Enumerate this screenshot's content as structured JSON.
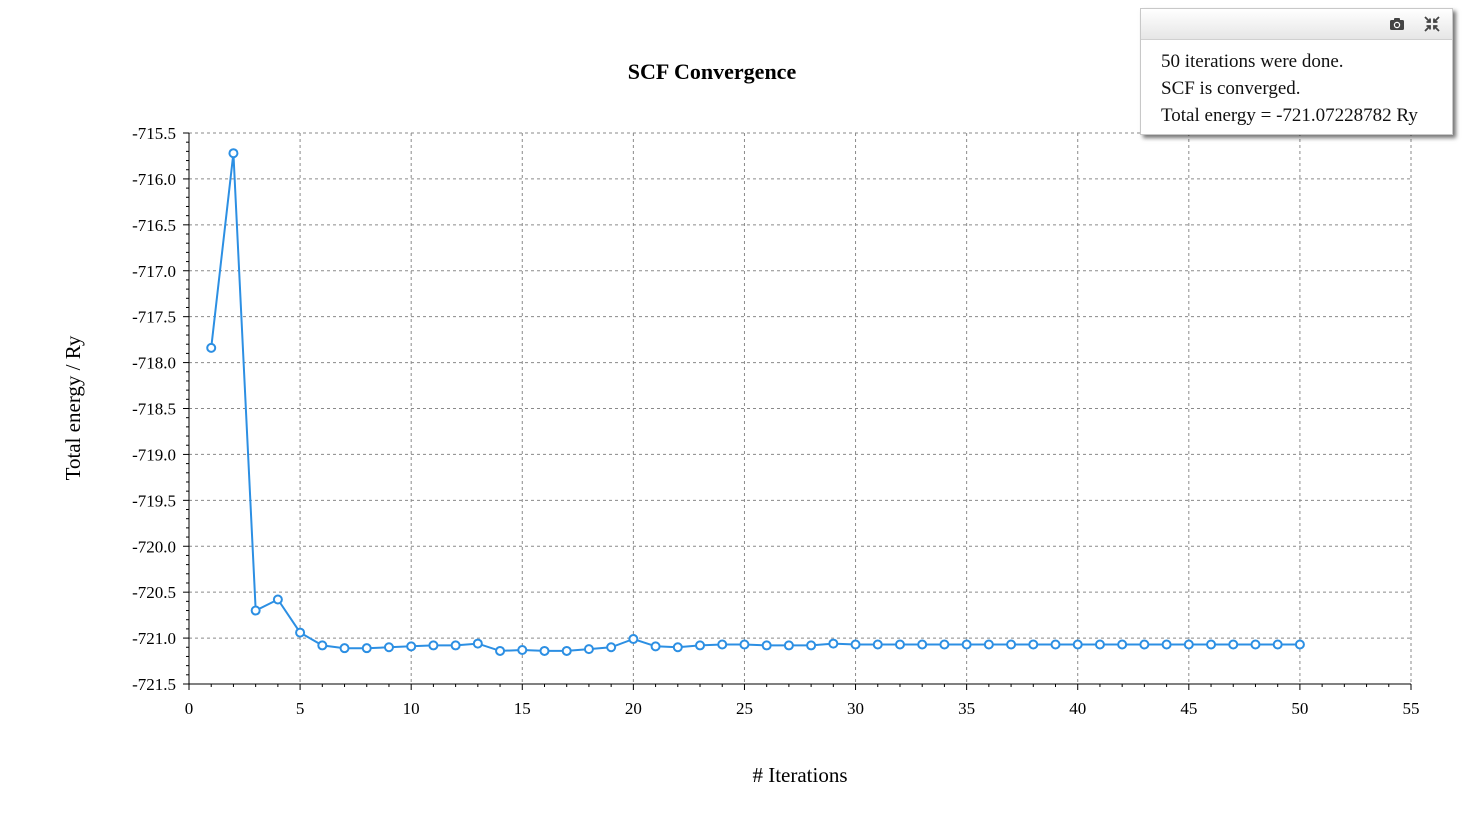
{
  "chart_data": {
    "type": "line",
    "title": "SCF Convergence",
    "xlabel": "# Iterations",
    "ylabel": "Total energy / Ry",
    "xlim": [
      0,
      55
    ],
    "ylim": [
      -721.5,
      -715.5
    ],
    "xticks": [
      "0",
      "5",
      "10",
      "15",
      "20",
      "25",
      "30",
      "35",
      "40",
      "45",
      "50",
      "55"
    ],
    "yticks": [
      "-715.5",
      "-716.0",
      "-716.5",
      "-717.0",
      "-717.5",
      "-718.0",
      "-718.5",
      "-719.0",
      "-719.5",
      "-720.0",
      "-720.5",
      "-721.0",
      "-721.5"
    ],
    "grid": true,
    "series": [
      {
        "color": "#2c8fe3",
        "x": [
          1,
          2,
          3,
          4,
          5,
          6,
          7,
          8,
          9,
          10,
          11,
          12,
          13,
          14,
          15,
          16,
          17,
          18,
          19,
          20,
          21,
          22,
          23,
          24,
          25,
          26,
          27,
          28,
          29,
          30,
          31,
          32,
          33,
          34,
          35,
          36,
          37,
          38,
          39,
          40,
          41,
          42,
          43,
          44,
          45,
          46,
          47,
          48,
          49,
          50
        ],
        "y": [
          -717.84,
          -715.72,
          -720.7,
          -720.58,
          -720.94,
          -721.08,
          -721.11,
          -721.11,
          -721.1,
          -721.09,
          -721.08,
          -721.08,
          -721.06,
          -721.14,
          -721.13,
          -721.14,
          -721.14,
          -721.12,
          -721.1,
          -721.01,
          -721.09,
          -721.1,
          -721.08,
          -721.07,
          -721.07,
          -721.08,
          -721.08,
          -721.08,
          -721.06,
          -721.07,
          -721.07,
          -721.07,
          -721.07,
          -721.07,
          -721.07,
          -721.07,
          -721.07,
          -721.07,
          -721.07,
          -721.07,
          -721.07,
          -721.07,
          -721.07,
          -721.07,
          -721.07,
          -721.07,
          -721.07,
          -721.07,
          -721.07,
          -721.07
        ]
      }
    ]
  },
  "info_box": {
    "line1": "50 iterations were done.",
    "line2": "SCF is converged.",
    "line3": "Total energy = -721.07228782 Ry",
    "camera_icon": "camera-icon",
    "collapse_icon": "collapse-icon"
  }
}
